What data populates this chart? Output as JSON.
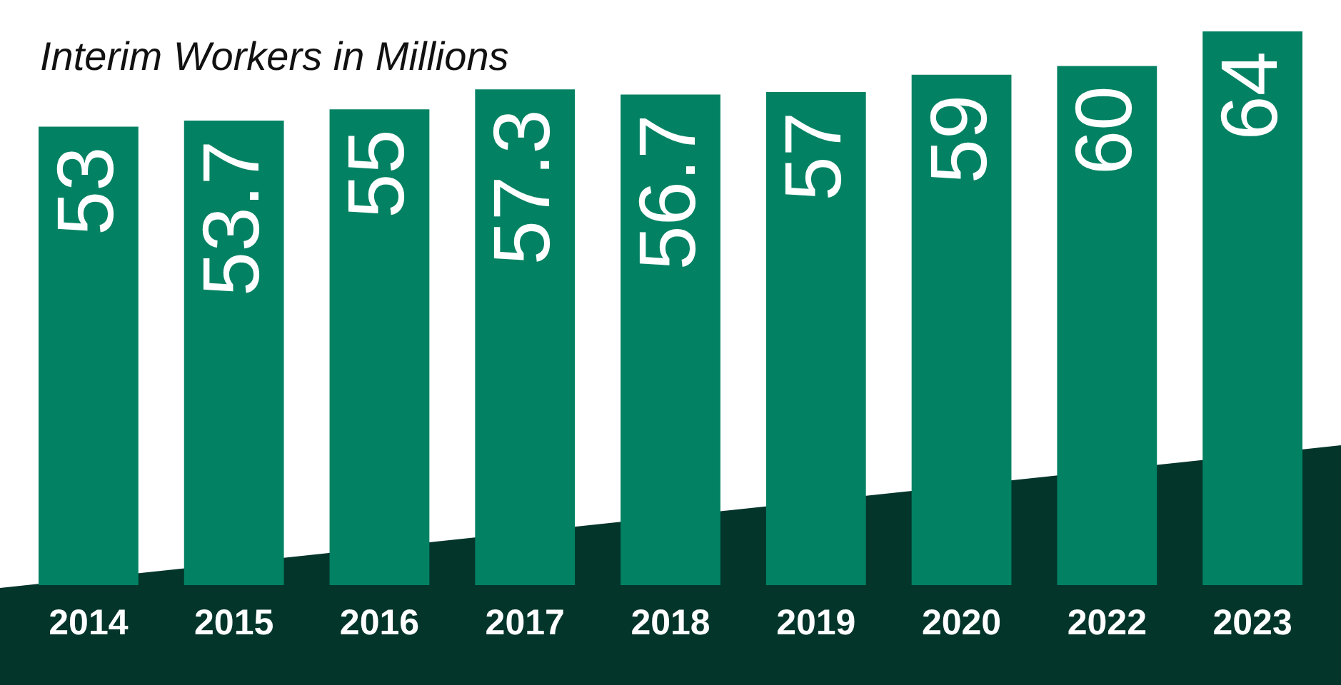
{
  "chart_data": {
    "type": "bar",
    "title": "Interim Workers in Millions",
    "categories": [
      "2014",
      "2015",
      "2016",
      "2017",
      "2018",
      "2019",
      "2020",
      "2022",
      "2023"
    ],
    "values": [
      53,
      53.7,
      55,
      57.3,
      56.7,
      57,
      59,
      60,
      64
    ],
    "color": "#038263",
    "data_labels": true,
    "tick_labels": "x"
  }
}
